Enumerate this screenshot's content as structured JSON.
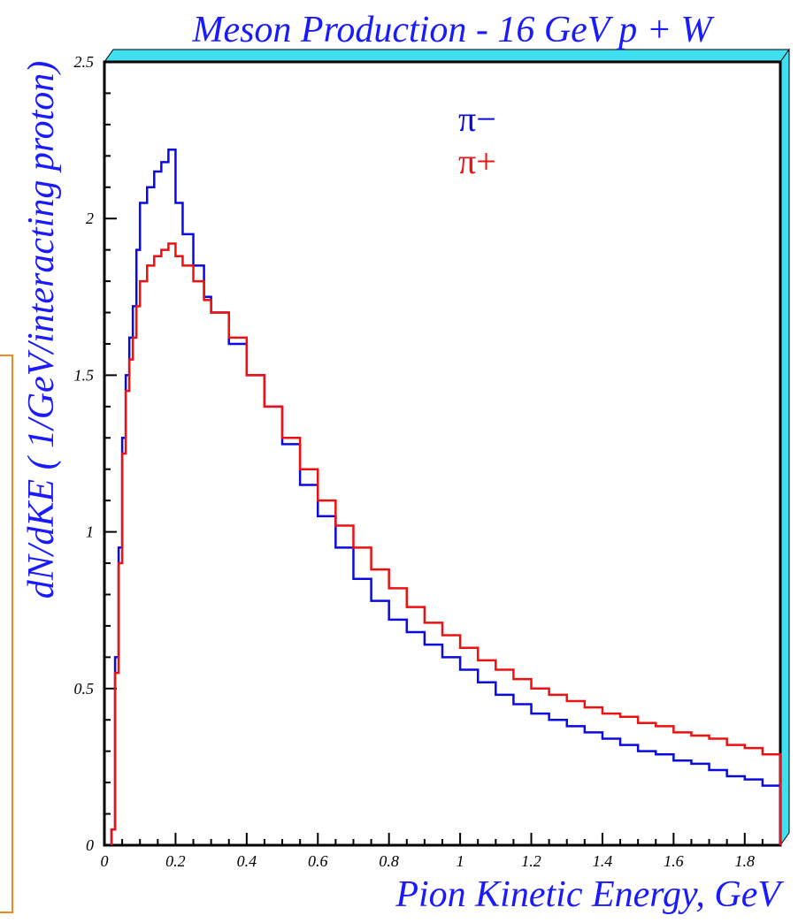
{
  "chart_data": {
    "type": "line",
    "title": "Meson Production - 16 GeV  p + W",
    "xlabel": "Pion Kinetic Energy, GeV",
    "ylabel": "dN/dKE ( 1/GeV/interacting proton)",
    "xlim": [
      0,
      1.9
    ],
    "ylim": [
      0,
      2.5
    ],
    "x_ticks": [
      0,
      0.2,
      0.4,
      0.6,
      0.8,
      1,
      1.2,
      1.4,
      1.6,
      1.8
    ],
    "x_tick_labels": [
      "0",
      "0.2",
      "0.4",
      "0.6",
      "0.8",
      "1",
      "1.2",
      "1.4",
      "1.6",
      "1.8"
    ],
    "y_ticks": [
      0,
      0.5,
      1,
      1.5,
      2,
      2.5
    ],
    "y_tick_labels": [
      "0",
      "0.5",
      "1",
      "1.5",
      "2",
      "2.5"
    ],
    "legend_position": "top-center",
    "grid": false,
    "series": [
      {
        "name": "π−",
        "color": "#0a0ae0",
        "x": [
          0.02,
          0.03,
          0.04,
          0.05,
          0.06,
          0.07,
          0.08,
          0.09,
          0.1,
          0.12,
          0.14,
          0.16,
          0.18,
          0.2,
          0.22,
          0.25,
          0.28,
          0.3,
          0.35,
          0.4,
          0.45,
          0.5,
          0.55,
          0.6,
          0.65,
          0.7,
          0.75,
          0.8,
          0.85,
          0.9,
          0.95,
          1.0,
          1.05,
          1.1,
          1.15,
          1.2,
          1.25,
          1.3,
          1.35,
          1.4,
          1.45,
          1.5,
          1.55,
          1.6,
          1.65,
          1.7,
          1.75,
          1.8,
          1.85,
          1.9
        ],
        "y": [
          0.05,
          0.6,
          0.95,
          1.3,
          1.5,
          1.62,
          1.72,
          1.9,
          2.05,
          2.1,
          2.15,
          2.18,
          2.22,
          2.05,
          1.95,
          1.85,
          1.75,
          1.7,
          1.6,
          1.5,
          1.4,
          1.28,
          1.15,
          1.05,
          0.95,
          0.85,
          0.78,
          0.72,
          0.68,
          0.64,
          0.6,
          0.56,
          0.52,
          0.48,
          0.45,
          0.42,
          0.4,
          0.38,
          0.36,
          0.34,
          0.32,
          0.3,
          0.29,
          0.27,
          0.26,
          0.24,
          0.22,
          0.21,
          0.19,
          0.17
        ]
      },
      {
        "name": "π+",
        "color": "#ee1111",
        "x": [
          0.02,
          0.03,
          0.04,
          0.05,
          0.06,
          0.07,
          0.08,
          0.09,
          0.1,
          0.12,
          0.14,
          0.16,
          0.18,
          0.2,
          0.22,
          0.25,
          0.28,
          0.3,
          0.35,
          0.4,
          0.45,
          0.5,
          0.55,
          0.6,
          0.65,
          0.7,
          0.75,
          0.8,
          0.85,
          0.9,
          0.95,
          1.0,
          1.05,
          1.1,
          1.15,
          1.2,
          1.25,
          1.3,
          1.35,
          1.4,
          1.45,
          1.5,
          1.55,
          1.6,
          1.65,
          1.7,
          1.75,
          1.8,
          1.85,
          1.9
        ],
        "y": [
          0.05,
          0.55,
          0.9,
          1.25,
          1.45,
          1.55,
          1.62,
          1.72,
          1.8,
          1.85,
          1.88,
          1.9,
          1.92,
          1.88,
          1.85,
          1.8,
          1.74,
          1.7,
          1.62,
          1.5,
          1.4,
          1.3,
          1.2,
          1.1,
          1.02,
          0.95,
          0.88,
          0.82,
          0.76,
          0.71,
          0.67,
          0.63,
          0.59,
          0.56,
          0.53,
          0.5,
          0.48,
          0.46,
          0.44,
          0.42,
          0.41,
          0.39,
          0.38,
          0.36,
          0.35,
          0.34,
          0.32,
          0.31,
          0.29,
          0.27
        ]
      }
    ]
  }
}
